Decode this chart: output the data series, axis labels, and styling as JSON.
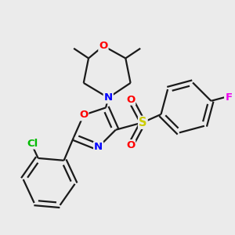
{
  "bg_color": "#ebebeb",
  "line_color": "#1a1a1a",
  "bond_width": 1.6,
  "atom_colors": {
    "O": "#ff0000",
    "N": "#0000ff",
    "S": "#cccc00",
    "Cl": "#00bb00",
    "F": "#ee00ee",
    "C": "#1a1a1a"
  },
  "font_size": 9.5
}
